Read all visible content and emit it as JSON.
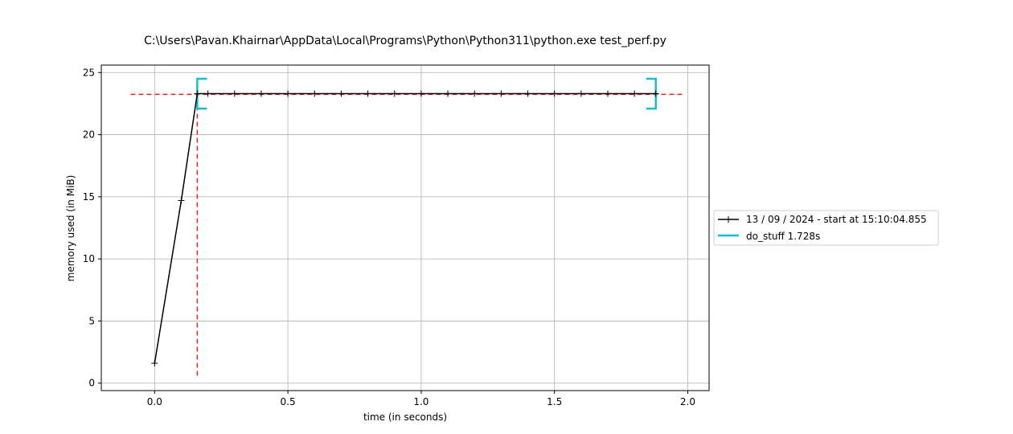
{
  "chart_data": {
    "type": "line",
    "title": "C:\\Users\\Pavan.Khairnar\\AppData\\Local\\Programs\\Python\\Python311\\python.exe test_perf.py",
    "xlabel": "time (in seconds)",
    "ylabel": "memory used (in MiB)",
    "xlim": [
      -0.2,
      2.08
    ],
    "ylim": [
      -0.6,
      25.6
    ],
    "xticks": [
      0.0,
      0.5,
      1.0,
      1.5,
      2.0
    ],
    "xtick_labels": [
      "0.0",
      "0.5",
      "1.0",
      "1.5",
      "2.0"
    ],
    "yticks": [
      0,
      5,
      10,
      15,
      20,
      25
    ],
    "ytick_labels": [
      "0",
      "5",
      "10",
      "15",
      "20",
      "25"
    ],
    "grid": true,
    "legend_position": "outside-right",
    "series": [
      {
        "name": "13 / 09 / 2024 - start at 15:10:04.855",
        "color": "#000000",
        "marker": "plus",
        "x": [
          0.0,
          0.1,
          0.16,
          0.2,
          0.3,
          0.4,
          0.5,
          0.6,
          0.7,
          0.8,
          0.9,
          1.0,
          1.1,
          1.2,
          1.3,
          1.4,
          1.5,
          1.6,
          1.7,
          1.8,
          1.88
        ],
        "y": [
          1.6,
          14.7,
          23.3,
          23.3,
          23.3,
          23.3,
          23.3,
          23.3,
          23.3,
          23.3,
          23.3,
          23.3,
          23.3,
          23.3,
          23.3,
          23.3,
          23.3,
          23.3,
          23.3,
          23.3,
          23.3
        ]
      }
    ],
    "function_spans": [
      {
        "name": "do_stuff 1.728s",
        "color": "#17becf",
        "start": 0.16,
        "end": 1.88,
        "y_low": 22.1,
        "y_high": 24.5
      }
    ],
    "reference_lines": {
      "color": "#d62728",
      "horizontal": {
        "y": 23.25,
        "x_from": -0.09,
        "x_to": 1.98
      },
      "vertical": {
        "x": 0.16,
        "y_from": 0.6,
        "y_to": 24.5
      }
    }
  }
}
